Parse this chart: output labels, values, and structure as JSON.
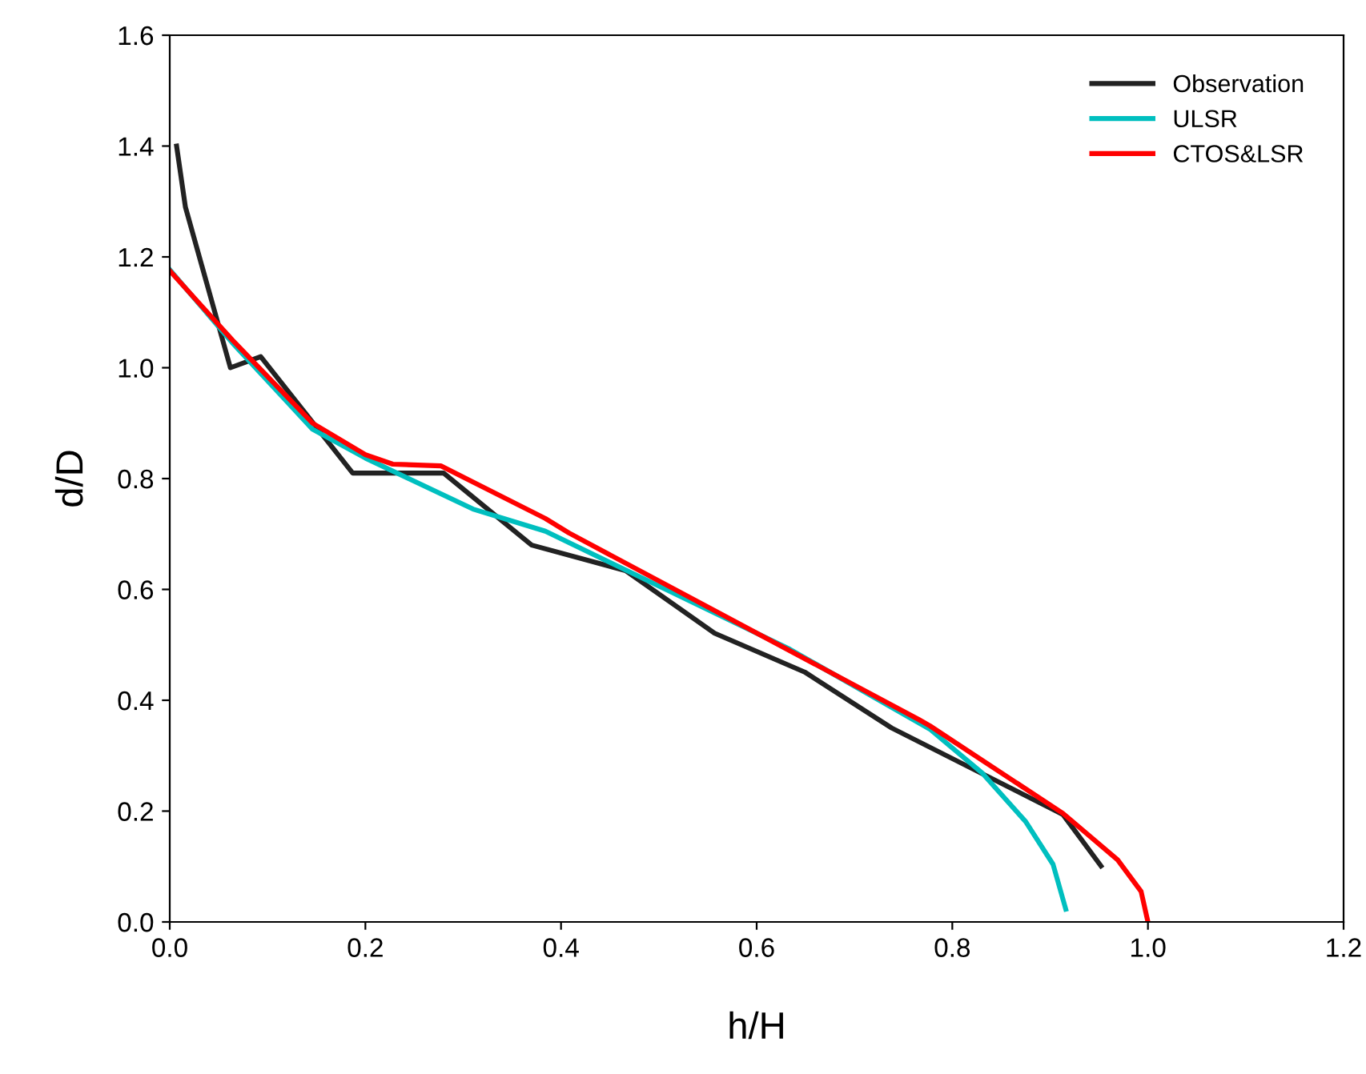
{
  "chart_data": {
    "type": "line",
    "xlabel": "h/H",
    "ylabel": "d/D",
    "xlim": [
      0,
      1.2
    ],
    "ylim": [
      0,
      1.6
    ],
    "xticks": [
      {
        "value": 0,
        "label": "0.0"
      },
      0.2,
      0.4,
      0.6,
      0.8,
      {
        "value": 1,
        "label": "1.0"
      },
      1.2
    ],
    "yticks": [
      {
        "value": 0,
        "label": "0.0"
      },
      0.2,
      0.4,
      0.6,
      0.8,
      {
        "value": 1,
        "label": "1.0"
      },
      1.2,
      1.4,
      1.6
    ],
    "grid": false,
    "legend": "top right",
    "marker": "none",
    "line_style": "solid",
    "series": [
      {
        "name": "Observation",
        "color": "#222222",
        "x": [
          0.007,
          0.016,
          0.062,
          0.093,
          0.187,
          0.28,
          0.37,
          0.466,
          0.557,
          0.649,
          0.738,
          0.913,
          0.952
        ],
        "values": [
          1.4,
          1.29,
          1.0,
          1.02,
          0.81,
          0.81,
          0.68,
          0.634,
          0.521,
          0.451,
          0.35,
          0.194,
          0.101
        ]
      },
      {
        "name": "ULSR",
        "color": "#00bfbf",
        "x": [
          0,
          0.064,
          0.146,
          0.2,
          0.31,
          0.384,
          0.634,
          0.777,
          0.831,
          0.875,
          0.903,
          0.916
        ],
        "values": [
          1.177,
          1.045,
          0.889,
          0.837,
          0.745,
          0.705,
          0.492,
          0.348,
          0.268,
          0.181,
          0.104,
          0.023
        ]
      },
      {
        "name": "CTOS&LSR",
        "color": "#ff0000",
        "x": [
          0,
          0.064,
          0.146,
          0.2,
          0.228,
          0.277,
          0.384,
          0.408,
          0.766,
          0.777,
          0.913,
          0.969,
          0.993,
          1.0
        ],
        "values": [
          1.175,
          1.05,
          0.9,
          0.843,
          0.826,
          0.823,
          0.728,
          0.702,
          0.365,
          0.354,
          0.196,
          0.112,
          0.055,
          0.0
        ]
      }
    ]
  }
}
